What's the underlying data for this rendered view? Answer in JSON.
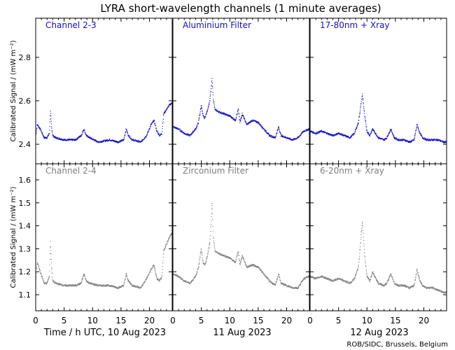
{
  "title": "LYRA short-wavelength channels (1 minute averages)",
  "footer": "ROB/SIDC, Brussels, Belgium",
  "date_labels": [
    "Time / h UTC, 10 Aug 2023",
    "11 Aug 2023",
    "12 Aug 2023"
  ],
  "x_ticks": [
    "0",
    "5",
    "10",
    "15",
    "20"
  ],
  "colors": {
    "top": "#1010c8",
    "bottom": "#7f7f7f",
    "frame": "#000000"
  },
  "chart_data": [
    {
      "type": "scatter",
      "panel": "top",
      "ylabel": "Calibrated Signal / (mW m⁻²)",
      "ylim": [
        2.31,
        2.98
      ],
      "y_ticks": [
        2.4,
        2.6,
        2.8
      ],
      "xlim": [
        0,
        24
      ],
      "x_unit": "h UTC",
      "series": [
        {
          "name": "Channel 2-3",
          "day": "10 Aug 2023",
          "x": [
            0,
            0.3,
            0.8,
            1.5,
            2,
            2.4,
            2.6,
            2.8,
            3.0,
            3.5,
            5,
            7,
            8,
            8.5,
            8.9,
            9.5,
            11,
            13,
            14.5,
            15.5,
            15.9,
            16.3,
            17,
            18.5,
            19.5,
            20.3,
            20.8,
            21.3,
            21.8,
            22.2,
            22.5,
            23.0,
            23.5,
            24
          ],
          "y": [
            2.44,
            2.49,
            2.47,
            2.43,
            2.43,
            2.45,
            2.55,
            2.48,
            2.44,
            2.43,
            2.42,
            2.42,
            2.44,
            2.47,
            2.44,
            2.43,
            2.41,
            2.42,
            2.41,
            2.42,
            2.47,
            2.44,
            2.42,
            2.41,
            2.44,
            2.49,
            2.51,
            2.46,
            2.44,
            2.45,
            2.54,
            2.56,
            2.58,
            2.59
          ]
        },
        {
          "name": "Aluminium Filter",
          "day": "11 Aug 2023",
          "x": [
            0,
            1,
            2,
            3,
            4,
            4.5,
            5,
            5.3,
            5.6,
            6,
            6.5,
            6.9,
            7.1,
            7.4,
            8,
            9,
            10,
            11,
            11.5,
            11.8,
            12.2,
            13,
            14,
            15,
            16,
            17,
            18,
            18.6,
            19,
            20,
            21,
            22,
            23,
            24
          ],
          "y": [
            2.48,
            2.47,
            2.45,
            2.44,
            2.47,
            2.5,
            2.58,
            2.53,
            2.52,
            2.55,
            2.6,
            2.7,
            2.61,
            2.56,
            2.55,
            2.54,
            2.53,
            2.51,
            2.56,
            2.5,
            2.54,
            2.49,
            2.51,
            2.5,
            2.47,
            2.44,
            2.43,
            2.48,
            2.44,
            2.43,
            2.42,
            2.43,
            2.46,
            2.47
          ]
        },
        {
          "name": "17-80nm + Xray",
          "day": "12 Aug 2023",
          "x": [
            0,
            1,
            2,
            3,
            4,
            5,
            6,
            7,
            7.8,
            8.5,
            9.2,
            9.6,
            10,
            10.5,
            11,
            12,
            13,
            13.5,
            14.2,
            14.8,
            15.5,
            16.5,
            17.5,
            18.3,
            18.8,
            19.3,
            19.8,
            20.5,
            21.5,
            22.5,
            23.5,
            24
          ],
          "y": [
            2.46,
            2.45,
            2.46,
            2.45,
            2.44,
            2.45,
            2.44,
            2.43,
            2.45,
            2.5,
            2.63,
            2.53,
            2.46,
            2.44,
            2.47,
            2.43,
            2.42,
            2.43,
            2.47,
            2.43,
            2.42,
            2.42,
            2.41,
            2.42,
            2.49,
            2.45,
            2.43,
            2.42,
            2.42,
            2.42,
            2.41,
            2.41
          ]
        }
      ]
    },
    {
      "type": "scatter",
      "panel": "bottom",
      "ylabel": "Calibrated Signal / (mW m⁻²)",
      "ylim": [
        1.03,
        1.67
      ],
      "y_ticks": [
        1.1,
        1.2,
        1.3,
        1.4,
        1.5,
        1.6
      ],
      "xlim": [
        0,
        24
      ],
      "x_unit": "h UTC",
      "series": [
        {
          "name": "Channel 2-4",
          "day": "10 Aug 2023",
          "x": [
            0,
            0.3,
            0.8,
            1.5,
            2,
            2.4,
            2.6,
            2.8,
            3.0,
            3.5,
            5,
            7,
            8,
            8.5,
            8.9,
            9.5,
            11,
            13,
            14.5,
            15.5,
            15.9,
            16.3,
            17,
            18.5,
            19.5,
            20.3,
            20.8,
            21.3,
            21.8,
            22.2,
            22.5,
            23.0,
            23.5,
            24
          ],
          "y": [
            1.16,
            1.24,
            1.2,
            1.15,
            1.15,
            1.18,
            1.33,
            1.22,
            1.16,
            1.15,
            1.14,
            1.14,
            1.15,
            1.19,
            1.16,
            1.15,
            1.14,
            1.14,
            1.13,
            1.14,
            1.19,
            1.16,
            1.14,
            1.13,
            1.17,
            1.21,
            1.23,
            1.17,
            1.16,
            1.18,
            1.29,
            1.32,
            1.35,
            1.37
          ]
        },
        {
          "name": "Zirconium Filter",
          "day": "11 Aug 2023",
          "x": [
            0,
            1,
            2,
            3,
            4,
            4.5,
            5,
            5.3,
            5.6,
            6,
            6.5,
            6.9,
            7.1,
            7.4,
            8,
            9,
            10,
            11,
            11.5,
            11.8,
            12.2,
            13,
            14,
            15,
            16,
            17,
            18,
            18.6,
            19,
            20,
            21,
            22,
            23,
            24
          ],
          "y": [
            1.19,
            1.18,
            1.16,
            1.15,
            1.18,
            1.22,
            1.3,
            1.24,
            1.23,
            1.26,
            1.33,
            1.5,
            1.35,
            1.29,
            1.28,
            1.27,
            1.26,
            1.24,
            1.29,
            1.23,
            1.27,
            1.22,
            1.23,
            1.22,
            1.19,
            1.16,
            1.14,
            1.19,
            1.15,
            1.14,
            1.13,
            1.13,
            1.17,
            1.18
          ]
        },
        {
          "name": "6-20nm + Xray",
          "day": "12 Aug 2023",
          "x": [
            0,
            1,
            2,
            3,
            4,
            5,
            6,
            7,
            7.8,
            8.5,
            9.2,
            9.6,
            10,
            10.5,
            11,
            12,
            13,
            13.5,
            14.2,
            14.8,
            15.5,
            16.5,
            17.5,
            18.3,
            18.8,
            19.3,
            19.8,
            20.5,
            21.5,
            22.5,
            23.5,
            24
          ],
          "y": [
            1.18,
            1.17,
            1.18,
            1.17,
            1.16,
            1.17,
            1.16,
            1.15,
            1.17,
            1.22,
            1.42,
            1.27,
            1.18,
            1.16,
            1.2,
            1.15,
            1.14,
            1.15,
            1.19,
            1.15,
            1.14,
            1.14,
            1.13,
            1.14,
            1.21,
            1.16,
            1.14,
            1.13,
            1.13,
            1.12,
            1.11,
            1.11
          ]
        }
      ]
    }
  ]
}
